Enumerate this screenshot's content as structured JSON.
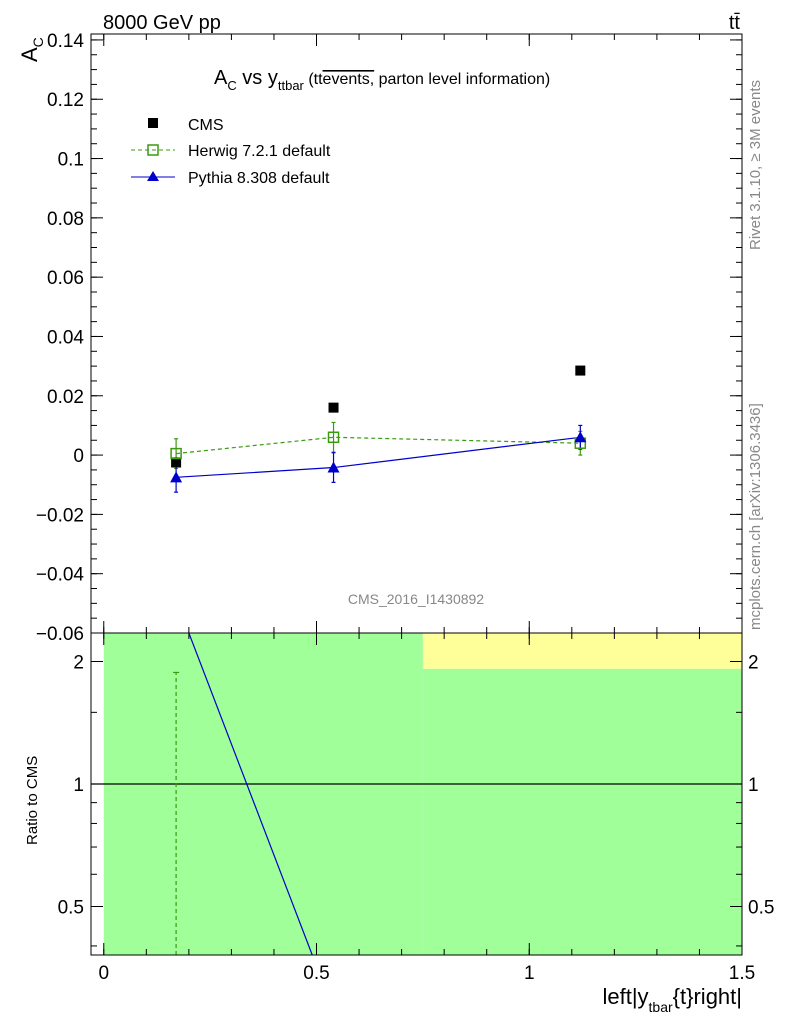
{
  "header": {
    "energy_label": "8000 GeV pp",
    "process_label": "tt̄",
    "rivet_label": "Rivet 3.1.10, ≥ 3M events",
    "mcplots_label": "mcplots.cern.ch [arXiv:1306.3436]",
    "analysis_label": "CMS_2016_I1430892"
  },
  "colors": {
    "cms": "#000000",
    "herwig": "#3a9a10",
    "pythia": "#0000cc",
    "band_green": "#a0ff99",
    "band_yellow": "#ffff99"
  },
  "chart_data": [
    {
      "type": "scatter",
      "title": "A_C vs y_ttbar (tt̄ events, parton level information)",
      "title_main": "A",
      "title_main_sub": "C",
      "title_vs": " vs y",
      "title_vs_sub": "ttbar",
      "title_paren_open": " (tt",
      "title_overline": "events,",
      "title_tail": " parton level information)",
      "ylabel": "A",
      "ylabel_sub": "C",
      "ylim": [
        -0.06,
        0.142
      ],
      "yticks": [
        -0.06,
        -0.04,
        -0.02,
        0,
        0.02,
        0.04,
        0.06,
        0.08,
        0.1,
        0.12,
        0.14
      ],
      "ytick_labels": [
        "−0.06",
        "−0.04",
        "−0.02",
        "0",
        "0.02",
        "0.04",
        "0.06",
        "0.08",
        "0.1",
        "0.12",
        "0.14"
      ],
      "xlim": [
        -0.03,
        1.5
      ],
      "legend_position": "top-left",
      "series": [
        {
          "name": "CMS",
          "x": [
            0.17,
            0.54,
            1.12
          ],
          "y": [
            -0.0025,
            0.016,
            0.0285
          ],
          "yerr": [
            0,
            0,
            0
          ]
        },
        {
          "name": "Herwig 7.2.1 default",
          "x": [
            0.17,
            0.54,
            1.12
          ],
          "y": [
            0.0005,
            0.006,
            0.004
          ],
          "yerr": [
            0.005,
            0.005,
            0.004
          ]
        },
        {
          "name": "Pythia 8.308 default",
          "x": [
            0.17,
            0.54,
            1.12
          ],
          "y": [
            -0.0075,
            -0.0042,
            0.006
          ],
          "yerr": [
            0.005,
            0.005,
            0.004
          ]
        }
      ]
    },
    {
      "type": "line",
      "ylabel": "Ratio to CMS",
      "xlabel": "left|y",
      "xlabel_sub": "tbar",
      "xlabel_tail": "{t}right|",
      "ylim": [
        0.38,
        2.35
      ],
      "log_y": true,
      "yticks": [
        0.5,
        1,
        2
      ],
      "ytick_labels": [
        "0.5",
        "1",
        "2"
      ],
      "xlim": [
        -0.03,
        1.5
      ],
      "xticks": [
        0,
        0.5,
        1,
        1.5
      ],
      "xtick_labels": [
        "0",
        "0.5",
        "1",
        "1.5"
      ],
      "bands": [
        {
          "x": [
            0,
            0.75
          ],
          "y": [
            0.38,
            2.35
          ],
          "color": "green"
        },
        {
          "x": [
            0.75,
            1.5
          ],
          "y": [
            0.38,
            1.92
          ],
          "color": "green"
        },
        {
          "x": [
            0.75,
            1.5
          ],
          "y": [
            1.92,
            2.35
          ],
          "color": "yellow"
        }
      ],
      "series": [
        {
          "name": "Herwig 7.2.1 default",
          "x": [
            0.17,
            0.17
          ],
          "y": [
            0.38,
            1.88
          ]
        },
        {
          "name": "Pythia 8.308 default",
          "x": [
            0.2,
            0.49
          ],
          "y": [
            2.35,
            0.38
          ]
        }
      ]
    }
  ]
}
